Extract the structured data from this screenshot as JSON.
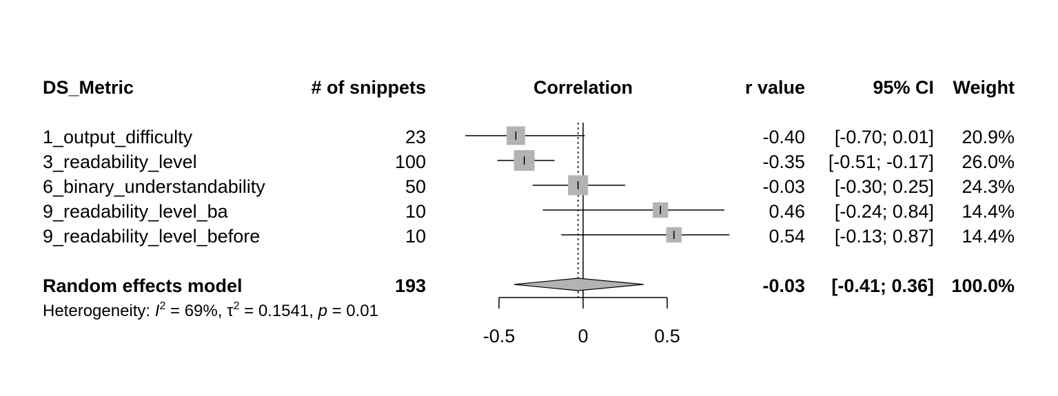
{
  "headers": {
    "study": "DS_Metric",
    "n": "# of snippets",
    "plot": "Correlation",
    "r": "r value",
    "ci": "95% CI",
    "weight": "Weight"
  },
  "rows": [
    {
      "label": "1_output_difficulty",
      "n": "23",
      "r": "-0.40",
      "ci": "[-0.70;  0.01]",
      "weight": "20.9%"
    },
    {
      "label": "3_readability_level",
      "n": "100",
      "r": "-0.35",
      "ci": "[-0.51; -0.17]",
      "weight": "26.0%"
    },
    {
      "label": "6_binary_understandability",
      "n": "50",
      "r": "-0.03",
      "ci": "[-0.30;  0.25]",
      "weight": "24.3%"
    },
    {
      "label": "9_readability_level_ba",
      "n": "10",
      "r": "0.46",
      "ci": "[-0.24;  0.84]",
      "weight": "14.4%"
    },
    {
      "label": "9_readability_level_before",
      "n": "10",
      "r": "0.54",
      "ci": "[-0.13;  0.87]",
      "weight": "14.4%"
    }
  ],
  "summary": {
    "label": "Random effects model",
    "n": "193",
    "r": "-0.03",
    "ci": "[-0.41;  0.36]",
    "weight": "100.0%"
  },
  "heterogeneity": {
    "prefix": "Heterogeneity: ",
    "i2_symbol": "I",
    "i2_value": " = 69%, ",
    "tau2_symbol": "τ",
    "tau2_value": " = 0.1541, ",
    "p_symbol": "p",
    "p_value": " = 0.01"
  },
  "chart_data": {
    "type": "forest",
    "x": [
      -0.4,
      -0.35,
      -0.03,
      0.46,
      0.54
    ],
    "ci_lower": [
      -0.7,
      -0.51,
      -0.3,
      -0.24,
      -0.13
    ],
    "ci_upper": [
      0.01,
      -0.17,
      0.25,
      0.84,
      0.87
    ],
    "weights": [
      20.9,
      26.0,
      24.3,
      14.4,
      14.4
    ],
    "summary": {
      "estimate": -0.03,
      "lower": -0.41,
      "upper": 0.36
    },
    "reference_line": 0,
    "xticks": [
      -0.5,
      0,
      0.5
    ],
    "xtick_labels": [
      "-0.5",
      "0",
      "0.5"
    ],
    "colors": {
      "square": "#b3b3b3",
      "diamond": "#b3b3b3",
      "line": "#000000"
    }
  }
}
